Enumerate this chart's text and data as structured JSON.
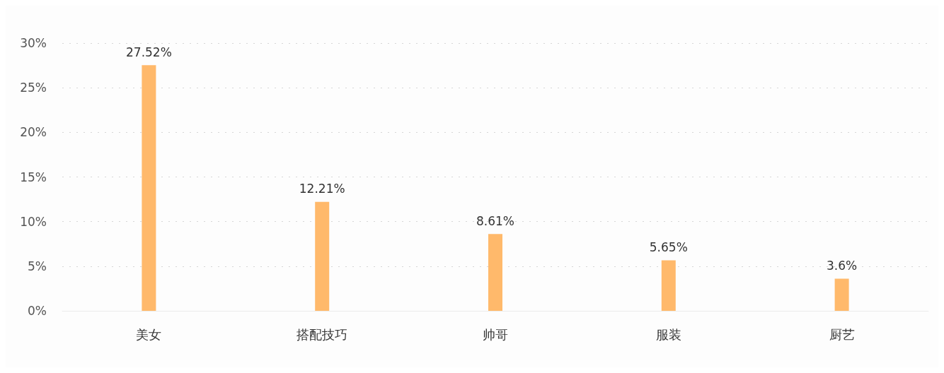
{
  "chart_data": {
    "type": "bar",
    "categories": [
      "美女",
      "搭配技巧",
      "帅哥",
      "服装",
      "厨艺"
    ],
    "values": [
      27.52,
      12.21,
      8.61,
      5.65,
      3.6
    ],
    "color": "#ffb96b",
    "value_labels": [
      "27.52%",
      "12.21%",
      "8.61%",
      "5.65%",
      "3.6%"
    ],
    "ylim": [
      0,
      30
    ],
    "yticks": [
      {
        "value": 0,
        "label": "0%"
      },
      {
        "value": 5,
        "label": "5%"
      },
      {
        "value": 10,
        "label": "10%"
      },
      {
        "value": 15,
        "label": "15%"
      },
      {
        "value": 20,
        "label": "20%"
      },
      {
        "value": 25,
        "label": "25%"
      },
      {
        "value": 30,
        "label": "30%"
      }
    ],
    "grid": "y"
  }
}
